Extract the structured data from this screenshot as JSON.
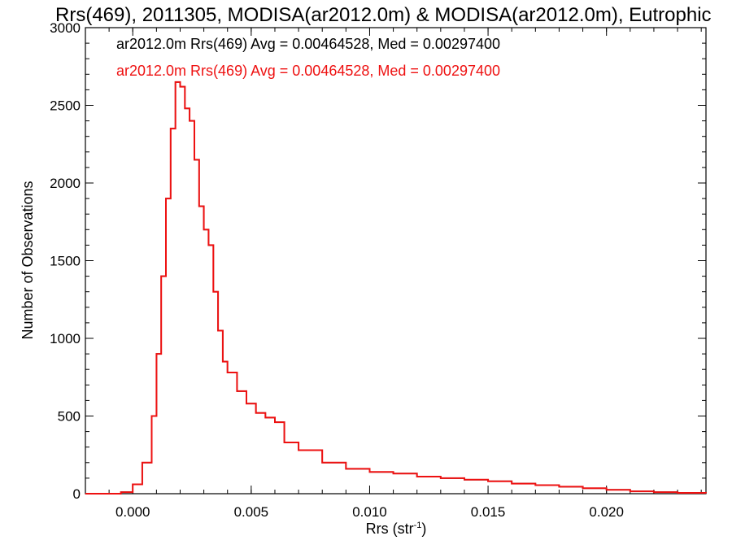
{
  "chart_data": {
    "type": "histogram",
    "title": "Rrs(469), 2011305, MODISA(ar2012.0m) & MODISA(ar2012.0m), Eutrophic",
    "xlabel": "Rrs (str",
    "xlabel_sup": "-1",
    "xlabel_end": ")",
    "ylabel": "Number of Observations",
    "xlim": [
      -0.002,
      0.0242
    ],
    "ylim": [
      0,
      3000
    ],
    "xticks": [
      0.0,
      0.005,
      0.01,
      0.015,
      0.02
    ],
    "xtick_labels": [
      "0.000",
      "0.005",
      "0.010",
      "0.015",
      "0.020"
    ],
    "yticks": [
      0,
      500,
      1000,
      1500,
      2000,
      2500,
      3000
    ],
    "ytick_labels": [
      "0",
      "500",
      "1000",
      "1500",
      "2000",
      "2500",
      "3000"
    ],
    "grid": false,
    "legend_position": "top-left",
    "series": [
      {
        "name": "ar2012.0m Rrs(469) Avg = 0.00464528, Med = 0.00297400",
        "color": "#000000",
        "x": [
          -0.002,
          -0.001,
          -0.0005,
          0.0,
          0.0004,
          0.0008,
          0.001,
          0.0012,
          0.0014,
          0.0016,
          0.0018,
          0.002,
          0.0022,
          0.0024,
          0.0026,
          0.0028,
          0.003,
          0.0032,
          0.0034,
          0.0036,
          0.0038,
          0.004,
          0.0044,
          0.0048,
          0.0052,
          0.0056,
          0.006,
          0.0064,
          0.007,
          0.008,
          0.009,
          0.01,
          0.011,
          0.012,
          0.013,
          0.014,
          0.015,
          0.016,
          0.017,
          0.018,
          0.019,
          0.02,
          0.021,
          0.022,
          0.023,
          0.0242
        ],
        "y": [
          0,
          0,
          10,
          60,
          200,
          500,
          900,
          1400,
          1900,
          2350,
          2650,
          2620,
          2480,
          2400,
          2150,
          1850,
          1700,
          1600,
          1300,
          1050,
          850,
          780,
          660,
          580,
          520,
          490,
          460,
          330,
          280,
          200,
          160,
          140,
          130,
          110,
          100,
          90,
          80,
          65,
          55,
          45,
          35,
          25,
          15,
          10,
          5,
          3
        ]
      },
      {
        "name": "ar2012.0m Rrs(469) Avg = 0.00464528, Med = 0.00297400",
        "color": "#ee1111",
        "x": [
          -0.002,
          -0.001,
          -0.0005,
          0.0,
          0.0004,
          0.0008,
          0.001,
          0.0012,
          0.0014,
          0.0016,
          0.0018,
          0.002,
          0.0022,
          0.0024,
          0.0026,
          0.0028,
          0.003,
          0.0032,
          0.0034,
          0.0036,
          0.0038,
          0.004,
          0.0044,
          0.0048,
          0.0052,
          0.0056,
          0.006,
          0.0064,
          0.007,
          0.008,
          0.009,
          0.01,
          0.011,
          0.012,
          0.013,
          0.014,
          0.015,
          0.016,
          0.017,
          0.018,
          0.019,
          0.02,
          0.021,
          0.022,
          0.023,
          0.0242
        ],
        "y": [
          0,
          0,
          10,
          60,
          200,
          500,
          900,
          1400,
          1900,
          2350,
          2650,
          2620,
          2480,
          2400,
          2150,
          1850,
          1700,
          1600,
          1300,
          1050,
          850,
          780,
          660,
          580,
          520,
          490,
          460,
          330,
          280,
          200,
          160,
          140,
          130,
          110,
          100,
          90,
          80,
          65,
          55,
          45,
          35,
          25,
          15,
          10,
          5,
          3
        ]
      }
    ]
  }
}
